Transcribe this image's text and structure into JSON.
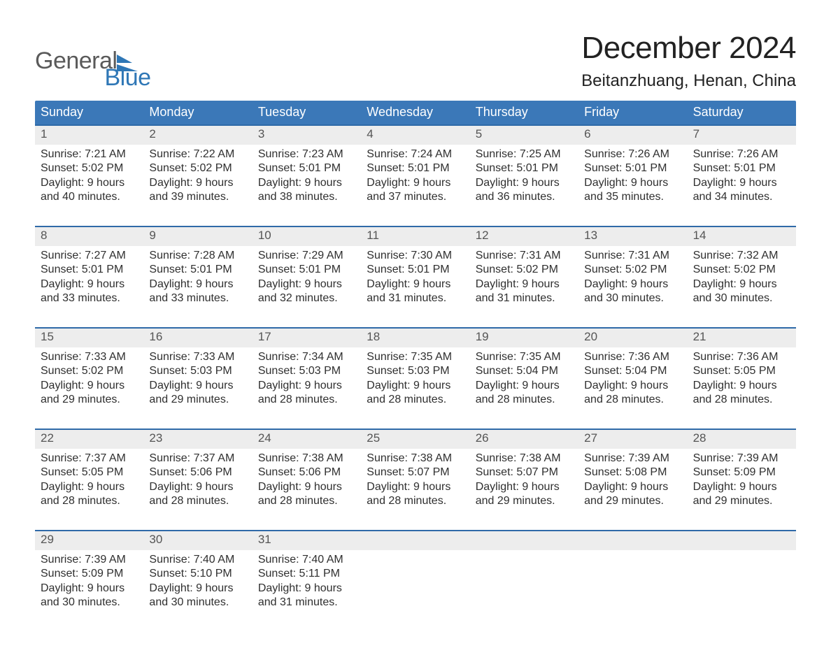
{
  "logo": {
    "word1": "General",
    "word2": "Blue"
  },
  "title": "December 2024",
  "location": "Beitanzhuang, Henan, China",
  "colors": {
    "accent": "#3b78b8",
    "accent_line": "#2f6aa8",
    "daybar": "#ededed",
    "text": "#2b2b2b",
    "page_bg": "#ffffff",
    "logo_gray": "#5a5a5a",
    "logo_blue": "#2f77b6"
  },
  "days_of_week": [
    "Sunday",
    "Monday",
    "Tuesday",
    "Wednesday",
    "Thursday",
    "Friday",
    "Saturday"
  ],
  "weeks": [
    [
      {
        "n": "1",
        "sunrise": "7:21 AM",
        "sunset": "5:02 PM",
        "daylight": "9 hours and 40 minutes."
      },
      {
        "n": "2",
        "sunrise": "7:22 AM",
        "sunset": "5:02 PM",
        "daylight": "9 hours and 39 minutes."
      },
      {
        "n": "3",
        "sunrise": "7:23 AM",
        "sunset": "5:01 PM",
        "daylight": "9 hours and 38 minutes."
      },
      {
        "n": "4",
        "sunrise": "7:24 AM",
        "sunset": "5:01 PM",
        "daylight": "9 hours and 37 minutes."
      },
      {
        "n": "5",
        "sunrise": "7:25 AM",
        "sunset": "5:01 PM",
        "daylight": "9 hours and 36 minutes."
      },
      {
        "n": "6",
        "sunrise": "7:26 AM",
        "sunset": "5:01 PM",
        "daylight": "9 hours and 35 minutes."
      },
      {
        "n": "7",
        "sunrise": "7:26 AM",
        "sunset": "5:01 PM",
        "daylight": "9 hours and 34 minutes."
      }
    ],
    [
      {
        "n": "8",
        "sunrise": "7:27 AM",
        "sunset": "5:01 PM",
        "daylight": "9 hours and 33 minutes."
      },
      {
        "n": "9",
        "sunrise": "7:28 AM",
        "sunset": "5:01 PM",
        "daylight": "9 hours and 33 minutes."
      },
      {
        "n": "10",
        "sunrise": "7:29 AM",
        "sunset": "5:01 PM",
        "daylight": "9 hours and 32 minutes."
      },
      {
        "n": "11",
        "sunrise": "7:30 AM",
        "sunset": "5:01 PM",
        "daylight": "9 hours and 31 minutes."
      },
      {
        "n": "12",
        "sunrise": "7:31 AM",
        "sunset": "5:02 PM",
        "daylight": "9 hours and 31 minutes."
      },
      {
        "n": "13",
        "sunrise": "7:31 AM",
        "sunset": "5:02 PM",
        "daylight": "9 hours and 30 minutes."
      },
      {
        "n": "14",
        "sunrise": "7:32 AM",
        "sunset": "5:02 PM",
        "daylight": "9 hours and 30 minutes."
      }
    ],
    [
      {
        "n": "15",
        "sunrise": "7:33 AM",
        "sunset": "5:02 PM",
        "daylight": "9 hours and 29 minutes."
      },
      {
        "n": "16",
        "sunrise": "7:33 AM",
        "sunset": "5:03 PM",
        "daylight": "9 hours and 29 minutes."
      },
      {
        "n": "17",
        "sunrise": "7:34 AM",
        "sunset": "5:03 PM",
        "daylight": "9 hours and 28 minutes."
      },
      {
        "n": "18",
        "sunrise": "7:35 AM",
        "sunset": "5:03 PM",
        "daylight": "9 hours and 28 minutes."
      },
      {
        "n": "19",
        "sunrise": "7:35 AM",
        "sunset": "5:04 PM",
        "daylight": "9 hours and 28 minutes."
      },
      {
        "n": "20",
        "sunrise": "7:36 AM",
        "sunset": "5:04 PM",
        "daylight": "9 hours and 28 minutes."
      },
      {
        "n": "21",
        "sunrise": "7:36 AM",
        "sunset": "5:05 PM",
        "daylight": "9 hours and 28 minutes."
      }
    ],
    [
      {
        "n": "22",
        "sunrise": "7:37 AM",
        "sunset": "5:05 PM",
        "daylight": "9 hours and 28 minutes."
      },
      {
        "n": "23",
        "sunrise": "7:37 AM",
        "sunset": "5:06 PM",
        "daylight": "9 hours and 28 minutes."
      },
      {
        "n": "24",
        "sunrise": "7:38 AM",
        "sunset": "5:06 PM",
        "daylight": "9 hours and 28 minutes."
      },
      {
        "n": "25",
        "sunrise": "7:38 AM",
        "sunset": "5:07 PM",
        "daylight": "9 hours and 28 minutes."
      },
      {
        "n": "26",
        "sunrise": "7:38 AM",
        "sunset": "5:07 PM",
        "daylight": "9 hours and 29 minutes."
      },
      {
        "n": "27",
        "sunrise": "7:39 AM",
        "sunset": "5:08 PM",
        "daylight": "9 hours and 29 minutes."
      },
      {
        "n": "28",
        "sunrise": "7:39 AM",
        "sunset": "5:09 PM",
        "daylight": "9 hours and 29 minutes."
      }
    ],
    [
      {
        "n": "29",
        "sunrise": "7:39 AM",
        "sunset": "5:09 PM",
        "daylight": "9 hours and 30 minutes."
      },
      {
        "n": "30",
        "sunrise": "7:40 AM",
        "sunset": "5:10 PM",
        "daylight": "9 hours and 30 minutes."
      },
      {
        "n": "31",
        "sunrise": "7:40 AM",
        "sunset": "5:11 PM",
        "daylight": "9 hours and 31 minutes."
      },
      null,
      null,
      null,
      null
    ]
  ],
  "labels": {
    "sunrise": "Sunrise:",
    "sunset": "Sunset:",
    "daylight": "Daylight:"
  }
}
